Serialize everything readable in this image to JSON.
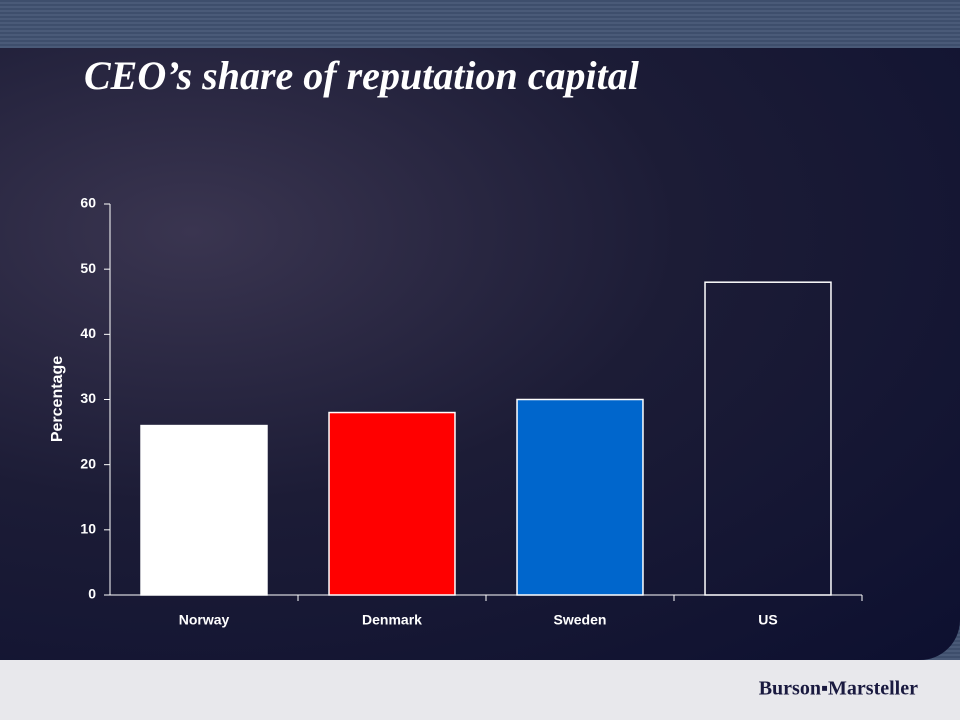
{
  "chart_data": {
    "type": "bar",
    "title": "CEO’s share of reputation capital",
    "ylabel": "Percentage",
    "categories": [
      "Norway",
      "Denmark",
      "Sweden",
      "US"
    ],
    "values": [
      26,
      28,
      30,
      48
    ],
    "colors": [
      "#ffffff",
      "#ff0000",
      "#0066cc",
      "transparent"
    ],
    "edgecolor": "#ffffff",
    "ylim": [
      0,
      60
    ],
    "yticks": [
      0,
      10,
      20,
      30,
      40,
      50,
      60
    ],
    "grid": false
  },
  "footer": "Burson▪Marsteller"
}
